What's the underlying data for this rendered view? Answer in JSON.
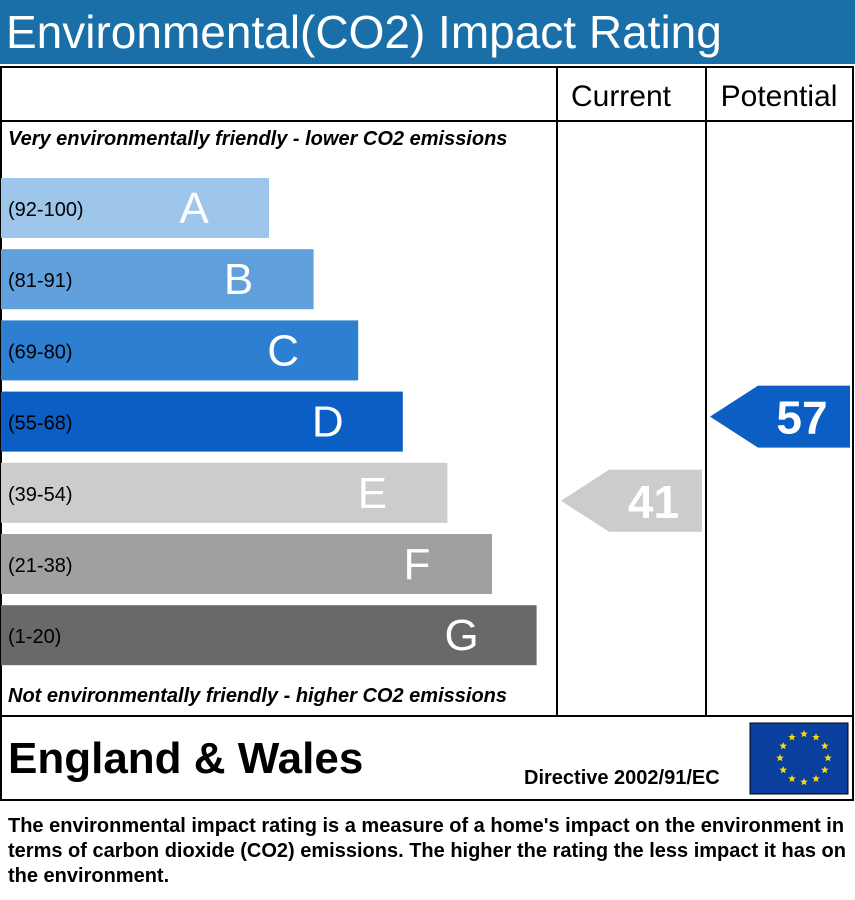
{
  "header": {
    "title": "Environmental(CO2) Impact Rating"
  },
  "columns": {
    "current": "Current",
    "potential": "Potential"
  },
  "top_note": "Very environmentally friendly - lower CO2 emissions",
  "bottom_note": "Not environmentally friendly - higher CO2 emissions",
  "region": "England & Wales",
  "directive": "Directive 2002/91/EC",
  "footer": "The environmental impact rating is a measure of a home's impact on the environment in terms of carbon dioxide (CO2) emissions. The higher the rating the less impact it has on the environment.",
  "chart_data": {
    "type": "bar",
    "categories": [
      "A",
      "B",
      "C",
      "D",
      "E",
      "F",
      "G"
    ],
    "ranges": [
      "(92-100)",
      "(81-91)",
      "(69-80)",
      "(55-68)",
      "(39-54)",
      "(21-38)",
      "(1-20)"
    ],
    "colors": [
      "#9ec6ea",
      "#5fa0dd",
      "#2d7fd2",
      "#0b5fc4",
      "#cccccc",
      "#a0a0a0",
      "#696969"
    ],
    "current": {
      "value": 41,
      "band": "E",
      "color": "#cccccc"
    },
    "potential": {
      "value": 57,
      "band": "D",
      "color": "#0b5fc4"
    }
  }
}
